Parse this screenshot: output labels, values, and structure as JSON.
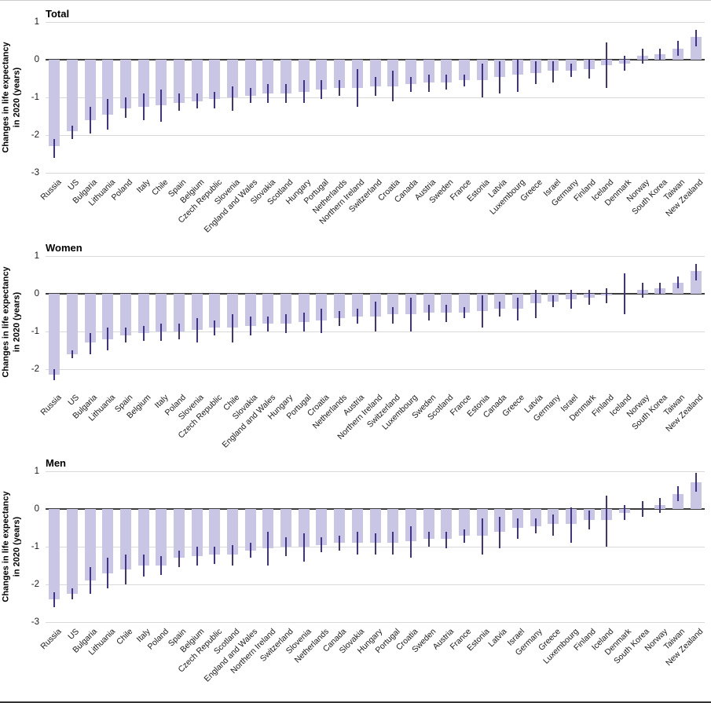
{
  "figure": {
    "description": "Changes in life expectancy in 2020 by country, with 95% confidence intervals, for Total, Women and Men"
  },
  "chart_data": [
    {
      "type": "bar",
      "title": "Total",
      "ylabel_lines": [
        "Changes in life expectancy",
        "in 2020 (years)"
      ],
      "ylim": [
        -3,
        1
      ],
      "yticks": [
        1,
        0,
        -1,
        -2,
        -3
      ],
      "grid": true,
      "bar_color": "#c9c6e5",
      "error_color": "#40348a",
      "categories": [
        "Russia",
        "US",
        "Bulgaria",
        "Lithuania",
        "Poland",
        "Italy",
        "Chile",
        "Spain",
        "Belgium",
        "Czech Republic",
        "Slovenia",
        "England and Wales",
        "Slovakia",
        "Scotland",
        "Hungary",
        "Portugal",
        "Netherlands",
        "Northern Ireland",
        "Switzerland",
        "Croatia",
        "Canada",
        "Austria",
        "Sweden",
        "France",
        "Estonia",
        "Latvia",
        "Luxembourg",
        "Greece",
        "Israel",
        "Germany",
        "Finland",
        "Iceland",
        "Denmark",
        "Norway",
        "South Korea",
        "Taiwan",
        "New Zealand"
      ],
      "values": [
        -2.3,
        -1.9,
        -1.6,
        -1.45,
        -1.3,
        -1.25,
        -1.2,
        -1.15,
        -1.1,
        -1.05,
        -1.0,
        -0.95,
        -0.9,
        -0.9,
        -0.85,
        -0.8,
        -0.75,
        -0.75,
        -0.7,
        -0.7,
        -0.65,
        -0.6,
        -0.6,
        -0.55,
        -0.55,
        -0.45,
        -0.4,
        -0.35,
        -0.3,
        -0.3,
        -0.25,
        -0.15,
        -0.1,
        0.1,
        0.15,
        0.3,
        0.6
      ],
      "ci_low": [
        -2.6,
        -2.1,
        -1.95,
        -1.85,
        -1.55,
        -1.6,
        -1.65,
        -1.35,
        -1.3,
        -1.3,
        -1.35,
        -1.15,
        -1.15,
        -1.15,
        -1.15,
        -1.05,
        -0.95,
        -1.25,
        -0.95,
        -1.1,
        -0.85,
        -0.85,
        -0.8,
        -0.7,
        -1.0,
        -0.9,
        -0.85,
        -0.65,
        -0.6,
        -0.45,
        -0.5,
        -0.75,
        -0.3,
        -0.1,
        0.0,
        0.1,
        0.35
      ],
      "ci_high": [
        -2.1,
        -1.75,
        -1.25,
        -1.05,
        -1.0,
        -0.9,
        -0.8,
        -0.9,
        -0.9,
        -0.85,
        -0.7,
        -0.75,
        -0.65,
        -0.65,
        -0.55,
        -0.55,
        -0.55,
        -0.25,
        -0.45,
        -0.3,
        -0.45,
        -0.4,
        -0.4,
        -0.4,
        -0.1,
        -0.05,
        0.0,
        -0.05,
        -0.05,
        -0.1,
        0.0,
        0.45,
        0.1,
        0.3,
        0.3,
        0.5,
        0.8
      ]
    },
    {
      "type": "bar",
      "title": "Women",
      "ylabel_lines": [
        "Changes in life expectancy",
        "in 2020 (years)"
      ],
      "ylim": [
        -2.5,
        1
      ],
      "yticks": [
        1,
        0,
        -1,
        -2
      ],
      "grid": true,
      "bar_color": "#c9c6e5",
      "error_color": "#40348a",
      "categories": [
        "Russia",
        "US",
        "Bulgaria",
        "Lithuania",
        "Spain",
        "Belgium",
        "Italy",
        "Poland",
        "Slovenia",
        "Czech Republic",
        "Chile",
        "Slovakia",
        "England and Wales",
        "Hungary",
        "Portugal",
        "Croatia",
        "Netherlands",
        "Austria",
        "Northern Ireland",
        "Switzerland",
        "Luxembourg",
        "Sweden",
        "Scotland",
        "France",
        "Estonia",
        "Canada",
        "Greece",
        "Latvia",
        "Germany",
        "Israel",
        "Denmark",
        "Finland",
        "Iceland",
        "Norway",
        "South Korea",
        "Taiwan",
        "New Zealand"
      ],
      "values": [
        -2.15,
        -1.6,
        -1.3,
        -1.2,
        -1.1,
        -1.05,
        -1.0,
        -1.0,
        -0.95,
        -0.9,
        -0.9,
        -0.85,
        -0.8,
        -0.8,
        -0.75,
        -0.7,
        -0.65,
        -0.6,
        -0.6,
        -0.55,
        -0.55,
        -0.5,
        -0.5,
        -0.5,
        -0.45,
        -0.4,
        -0.4,
        -0.25,
        -0.2,
        -0.15,
        -0.1,
        -0.05,
        0.0,
        0.1,
        0.15,
        0.3,
        0.6
      ],
      "ci_low": [
        -2.3,
        -1.7,
        -1.6,
        -1.5,
        -1.3,
        -1.25,
        -1.25,
        -1.2,
        -1.3,
        -1.1,
        -1.3,
        -1.1,
        -1.0,
        -1.05,
        -1.0,
        -1.05,
        -0.85,
        -0.8,
        -1.0,
        -0.8,
        -1.0,
        -0.7,
        -0.75,
        -0.65,
        -0.9,
        -0.6,
        -0.7,
        -0.65,
        -0.35,
        -0.4,
        -0.3,
        -0.25,
        -0.55,
        -0.1,
        0.0,
        0.15,
        0.35
      ],
      "ci_high": [
        -2.0,
        -1.5,
        -1.05,
        -0.9,
        -0.9,
        -0.85,
        -0.8,
        -0.8,
        -0.65,
        -0.7,
        -0.55,
        -0.6,
        -0.6,
        -0.55,
        -0.5,
        -0.4,
        -0.45,
        -0.4,
        -0.2,
        -0.35,
        -0.1,
        -0.3,
        -0.3,
        -0.35,
        -0.05,
        -0.2,
        -0.1,
        0.1,
        -0.05,
        0.1,
        0.1,
        0.15,
        0.55,
        0.3,
        0.3,
        0.45,
        0.8
      ]
    },
    {
      "type": "bar",
      "title": "Men",
      "ylabel_lines": [
        "Changes in life expectancy",
        "in 2020 (years)"
      ],
      "ylim": [
        -3,
        1
      ],
      "yticks": [
        1,
        0,
        -1,
        -2,
        -3
      ],
      "grid": true,
      "bar_color": "#c9c6e5",
      "error_color": "#40348a",
      "categories": [
        "Russia",
        "US",
        "Bulgaria",
        "Lithuania",
        "Chile",
        "Italy",
        "Poland",
        "Spain",
        "Belgium",
        "Czech Republic",
        "Scotland",
        "England and Wales",
        "Northern Ireland",
        "Switzerland",
        "Slovenia",
        "Netherlands",
        "Canada",
        "Slovakia",
        "Hungary",
        "Portugal",
        "Croatia",
        "Sweden",
        "Austria",
        "France",
        "Estonia",
        "Latvia",
        "Israel",
        "Germany",
        "Greece",
        "Luxembourg",
        "Finland",
        "Iceland",
        "Denmark",
        "South Korea",
        "Norway",
        "Taiwan",
        "New Zealand"
      ],
      "values": [
        -2.4,
        -2.25,
        -1.9,
        -1.7,
        -1.6,
        -1.5,
        -1.5,
        -1.3,
        -1.25,
        -1.2,
        -1.2,
        -1.1,
        -1.05,
        -1.0,
        -1.0,
        -0.95,
        -0.9,
        -0.9,
        -0.9,
        -0.9,
        -0.85,
        -0.8,
        -0.8,
        -0.7,
        -0.7,
        -0.6,
        -0.5,
        -0.45,
        -0.4,
        -0.4,
        -0.3,
        -0.3,
        -0.1,
        0.0,
        0.1,
        0.4,
        0.7
      ],
      "ci_low": [
        -2.6,
        -2.4,
        -2.25,
        -2.1,
        -2.0,
        -1.8,
        -1.75,
        -1.55,
        -1.5,
        -1.45,
        -1.5,
        -1.3,
        -1.5,
        -1.25,
        -1.4,
        -1.15,
        -1.1,
        -1.2,
        -1.2,
        -1.2,
        -1.3,
        -1.0,
        -1.05,
        -0.9,
        -1.2,
        -1.05,
        -0.8,
        -0.65,
        -0.7,
        -0.9,
        -0.55,
        -1.0,
        -0.3,
        -0.2,
        -0.1,
        0.2,
        0.45
      ],
      "ci_high": [
        -2.2,
        -2.1,
        -1.55,
        -1.3,
        -1.2,
        -1.2,
        -1.25,
        -1.1,
        -1.0,
        -1.0,
        -0.95,
        -0.9,
        -0.6,
        -0.75,
        -0.65,
        -0.75,
        -0.7,
        -0.6,
        -0.65,
        -0.6,
        -0.45,
        -0.6,
        -0.6,
        -0.55,
        -0.25,
        -0.2,
        -0.25,
        -0.25,
        -0.15,
        0.05,
        -0.05,
        0.35,
        0.1,
        0.2,
        0.3,
        0.6,
        0.95
      ]
    }
  ]
}
